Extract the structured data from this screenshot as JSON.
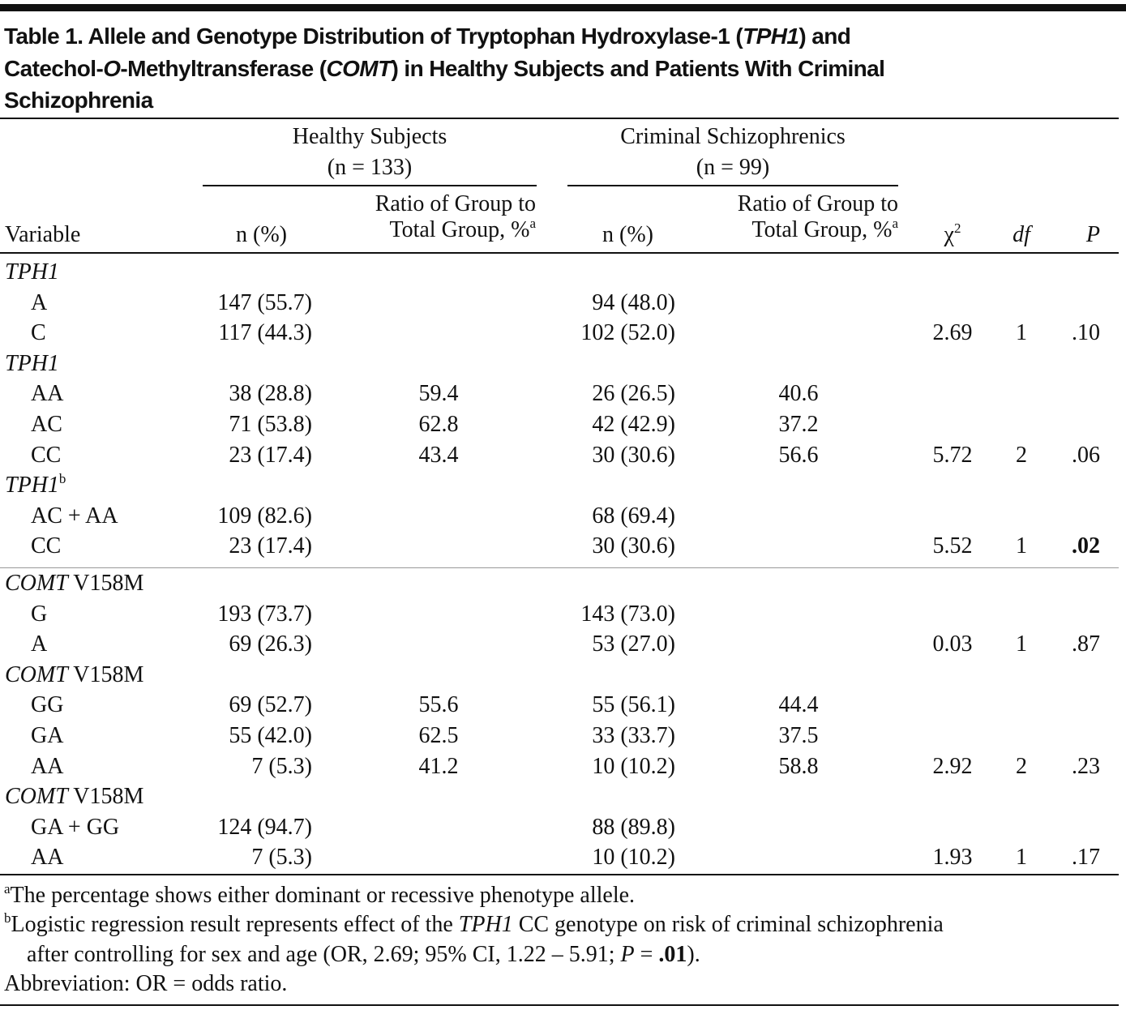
{
  "title": [
    "Table 1. Allele and Genotype Distribution of Tryptophan Hydroxylase-1 (",
    "TPH1",
    ") and",
    "Catechol-",
    "O",
    "-Methyltransferase (",
    "COMT",
    ") in Healthy Subjects and Patients With Criminal",
    "Schizophrenia"
  ],
  "header": {
    "groups": [
      {
        "name": "Healthy Subjects",
        "n": "(n = 133)",
        "count_col": "n (%)",
        "ratio_col": [
          "Ratio of Group to",
          "Total Group, %"
        ],
        "ratio_note": "a"
      },
      {
        "name": "Criminal Schizophrenics",
        "n": "(n = 99)",
        "count_col": "n (%)",
        "ratio_col": [
          "Ratio of Group to",
          "Total Group, %"
        ],
        "ratio_note": "a"
      }
    ],
    "variable": "Variable",
    "chi2": "χ",
    "chi2_sup": "2",
    "df": "df",
    "p": "P"
  },
  "blocks": [
    {
      "sections": [
        {
          "label": {
            "gene": "TPH1"
          },
          "rows": [
            {
              "variable": "A",
              "healthy_n": "147 (55.7)",
              "criminal_n": "94 (48.0)"
            },
            {
              "variable": "C",
              "healthy_n": "117 (44.3)",
              "criminal_n": "102 (52.0)",
              "chi2": "2.69",
              "df": "1",
              "p": ".10"
            }
          ]
        },
        {
          "label": {
            "gene": "TPH1"
          },
          "rows": [
            {
              "variable": "AA",
              "healthy_n": "38 (28.8)",
              "healthy_ratio": "59.4",
              "criminal_n": "26 (26.5)",
              "criminal_ratio": "40.6"
            },
            {
              "variable": "AC",
              "healthy_n": "71 (53.8)",
              "healthy_ratio": "62.8",
              "criminal_n": "42 (42.9)",
              "criminal_ratio": "37.2"
            },
            {
              "variable": "CC",
              "healthy_n": "23 (17.4)",
              "healthy_ratio": "43.4",
              "criminal_n": "30 (30.6)",
              "criminal_ratio": "56.6",
              "chi2": "5.72",
              "df": "2",
              "p": ".06"
            }
          ]
        },
        {
          "label": {
            "gene": "TPH1",
            "note": "b"
          },
          "rows": [
            {
              "variable": "AC + AA",
              "healthy_n": "109 (82.6)",
              "criminal_n": "68 (69.4)"
            },
            {
              "variable": "CC",
              "healthy_n": "23 (17.4)",
              "criminal_n": "30 (30.6)",
              "chi2": "5.52",
              "df": "1",
              "p": ".02",
              "bold_p": true
            }
          ]
        }
      ]
    },
    {
      "sections": [
        {
          "label": {
            "gene": "COMT",
            "variant": "V158M"
          },
          "rows": [
            {
              "variable": "G",
              "healthy_n": "193 (73.7)",
              "criminal_n": "143 (73.0)"
            },
            {
              "variable": "A",
              "healthy_n": "69 (26.3)",
              "criminal_n": "53 (27.0)",
              "chi2": "0.03",
              "df": "1",
              "p": ".87"
            }
          ]
        },
        {
          "label": {
            "gene": "COMT",
            "variant": "V158M"
          },
          "rows": [
            {
              "variable": "GG",
              "healthy_n": "69 (52.7)",
              "healthy_ratio": "55.6",
              "criminal_n": "55 (56.1)",
              "criminal_ratio": "44.4"
            },
            {
              "variable": "GA",
              "healthy_n": "55 (42.0)",
              "healthy_ratio": "62.5",
              "criminal_n": "33 (33.7)",
              "criminal_ratio": "37.5"
            },
            {
              "variable": "AA",
              "healthy_n": "7 (5.3)",
              "healthy_ratio": "41.2",
              "criminal_n": "10 (10.2)",
              "criminal_ratio": "58.8",
              "chi2": "2.92",
              "df": "2",
              "p": ".23"
            }
          ]
        },
        {
          "label": {
            "gene": "COMT",
            "variant": "V158M"
          },
          "rows": [
            {
              "variable": "GA + GG",
              "healthy_n": "124 (94.7)",
              "criminal_n": "88 (89.8)"
            },
            {
              "variable": "AA",
              "healthy_n": "7 (5.3)",
              "criminal_n": "10 (10.2)",
              "chi2": "1.93",
              "df": "1",
              "p": ".17"
            }
          ]
        }
      ]
    }
  ],
  "footnotes": {
    "a": [
      "a",
      "The percentage shows either dominant or recessive phenotype allele."
    ],
    "b": [
      "b",
      "Logistic regression result represents effect of the ",
      "TPH1",
      " CC genotype on risk of criminal schizophrenia",
      "after controlling for sex and age (OR, 2.69; 95% CI, 1.22 – 5.91; ",
      "P",
      " = ",
      ".01",
      ")."
    ],
    "abbreviation": "Abbreviation: OR = odds ratio."
  }
}
